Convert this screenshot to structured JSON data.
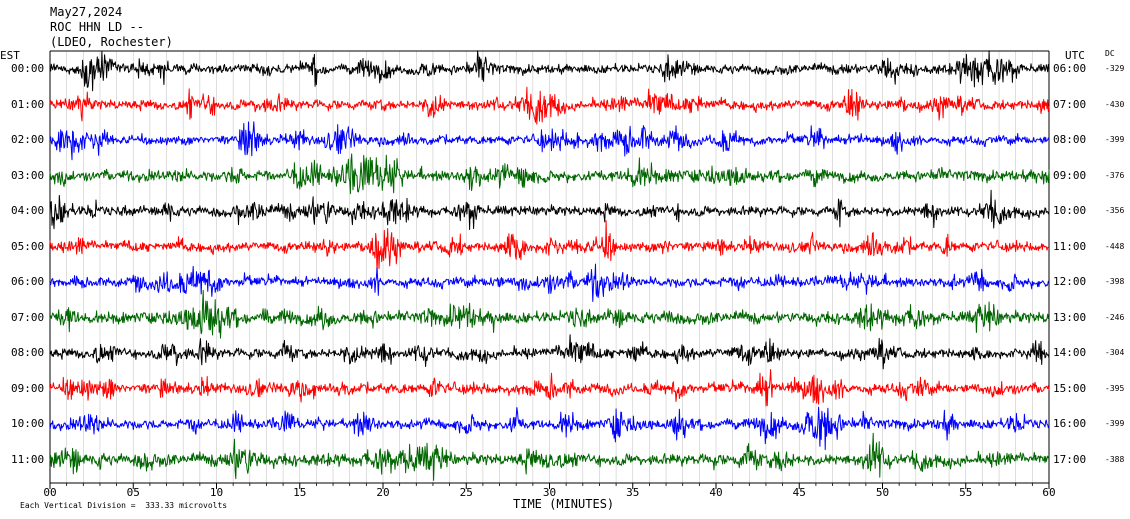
{
  "header": {
    "date": "May27,2024",
    "station": "ROC HHN LD --",
    "network": "(LDEO, Rochester)"
  },
  "left_axis_title": "EST",
  "right_axis_title": "UTC",
  "dc_title": "DC",
  "est_labels": [
    "00:00",
    "01:00",
    "02:00",
    "03:00",
    "04:00",
    "05:00",
    "06:00",
    "07:00",
    "08:00",
    "09:00",
    "10:00",
    "11:00"
  ],
  "utc_labels": [
    "06:00",
    "07:00",
    "08:00",
    "09:00",
    "10:00",
    "11:00",
    "12:00",
    "13:00",
    "14:00",
    "15:00",
    "16:00",
    "17:00"
  ],
  "dc_offsets": [
    "-329",
    "-430",
    "-399",
    "-376",
    "-356",
    "-448",
    "-398",
    "-246",
    "-304",
    "-395",
    "-399",
    "-388"
  ],
  "trace_colors": [
    "#000000",
    "#ff0000",
    "#0000ff",
    "#006600"
  ],
  "footer": {
    "xlabel": "TIME (MINUTES)",
    "scale_note": "Each Vertical Division =  333.33 microvolts"
  },
  "chart_data": {
    "type": "line",
    "title": "ROC HHN LD --",
    "xlabel": "TIME (MINUTES)",
    "ylabel": "EST",
    "xlim": [
      0,
      60
    ],
    "x_ticks": [
      "00",
      "05",
      "10",
      "15",
      "20",
      "25",
      "30",
      "35",
      "40",
      "45",
      "50",
      "55",
      "60"
    ],
    "x_tick_values": [
      0,
      5,
      10,
      15,
      20,
      25,
      30,
      35,
      40,
      45,
      50,
      55,
      60
    ],
    "grid": true,
    "series": [
      {
        "name": "00:00",
        "color": "#000000",
        "dc": -329,
        "noise": 0.55,
        "events": [
          {
            "t": 2.8,
            "amp": 2.1,
            "dur": 0.9
          },
          {
            "t": 56,
            "amp": 1.6,
            "dur": 0.7
          }
        ]
      },
      {
        "name": "01:00",
        "color": "#ff0000",
        "dc": -430,
        "noise": 0.6,
        "events": [
          {
            "t": 28.8,
            "amp": 1.4,
            "dur": 0.8
          },
          {
            "t": 36.5,
            "amp": 1.5,
            "dur": 0.8
          }
        ]
      },
      {
        "name": "02:00",
        "color": "#0000ff",
        "dc": -399,
        "noise": 0.55,
        "events": [
          {
            "t": 17.5,
            "amp": 1.3,
            "dur": 0.8
          },
          {
            "t": 34.5,
            "amp": 1.3,
            "dur": 0.8
          }
        ]
      },
      {
        "name": "03:00",
        "color": "#006600",
        "dc": -376,
        "noise": 0.65,
        "events": [
          {
            "t": 19.2,
            "amp": 1.9,
            "dur": 1.2
          }
        ]
      },
      {
        "name": "04:00",
        "color": "#000000",
        "dc": -356,
        "noise": 0.6,
        "events": [
          {
            "t": 0.6,
            "amp": 1.2,
            "dur": 0.6
          },
          {
            "t": 20.5,
            "amp": 1.2,
            "dur": 0.8
          }
        ]
      },
      {
        "name": "05:00",
        "color": "#ff0000",
        "dc": -448,
        "noise": 0.6,
        "events": [
          {
            "t": 19.6,
            "amp": 1.1,
            "dur": 0.7
          }
        ]
      },
      {
        "name": "06:00",
        "color": "#0000ff",
        "dc": -398,
        "noise": 0.6,
        "events": [
          {
            "t": 8.5,
            "amp": 1.5,
            "dur": 0.9
          },
          {
            "t": 33,
            "amp": 1.0,
            "dur": 0.8
          }
        ]
      },
      {
        "name": "07:00",
        "color": "#006600",
        "dc": -246,
        "noise": 0.7,
        "events": [
          {
            "t": 9.5,
            "amp": 2.3,
            "dur": 1.2
          }
        ]
      },
      {
        "name": "08:00",
        "color": "#000000",
        "dc": -304,
        "noise": 0.6,
        "events": []
      },
      {
        "name": "09:00",
        "color": "#ff0000",
        "dc": -395,
        "noise": 0.65,
        "events": [
          {
            "t": 46,
            "amp": 1.3,
            "dur": 0.7
          }
        ]
      },
      {
        "name": "10:00",
        "color": "#0000ff",
        "dc": -399,
        "noise": 0.6,
        "events": [
          {
            "t": 46.5,
            "amp": 2.1,
            "dur": 1.0
          },
          {
            "t": 2.5,
            "amp": 1.2,
            "dur": 0.7
          }
        ]
      },
      {
        "name": "11:00",
        "color": "#006600",
        "dc": -388,
        "noise": 0.7,
        "events": [
          {
            "t": 11.5,
            "amp": 1.8,
            "dur": 0.9
          },
          {
            "t": 23,
            "amp": 1.4,
            "dur": 0.9
          }
        ]
      }
    ]
  }
}
